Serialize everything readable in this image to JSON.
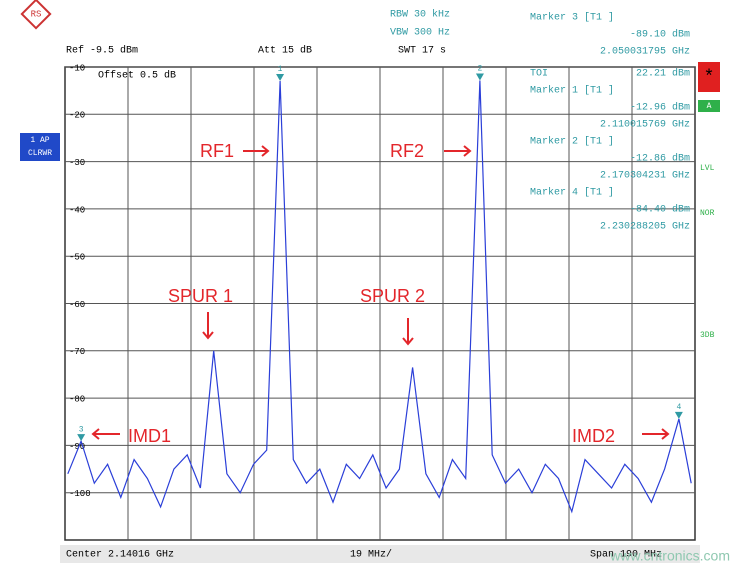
{
  "header": {
    "rbw": "RBW 30 kHz",
    "vbw": "VBW 300 Hz",
    "swt": "SWT 17 s",
    "ref": "Ref -9.5 dBm",
    "att": "Att 15 dB",
    "offset": "Offset 0.5 dB"
  },
  "marker_panel": {
    "rows": [
      {
        "label": "Marker 3 [T1 ]",
        "value": "-89.10 dBm",
        "freq": "2.050031795 GHz"
      },
      {
        "label": "TOI",
        "value": "22.21 dBm"
      },
      {
        "label": "Marker 1 [T1 ]",
        "value": "-12.96 dBm",
        "freq": "2.110015769 GHz"
      },
      {
        "label": "Marker 2 [T1 ]",
        "value": "-12.86 dBm",
        "freq": "2.170304231 GHz"
      },
      {
        "label": "Marker 4 [T1 ]",
        "value": "-84.40 dBm",
        "freq": "2.230288205 GHz"
      }
    ]
  },
  "side_labels": {
    "trace": "1 AP",
    "mode": "CLRWR",
    "star": "*",
    "a": "A",
    "lvl": "LVL",
    "nor": "NOR",
    "db": "3DB"
  },
  "footer": {
    "center": "Center 2.14016 GHz",
    "div": "19 MHz/",
    "span": "Span 190 MHz"
  },
  "watermark": "www.cntronics.com",
  "chart_data": {
    "type": "line",
    "color": "#2b3fd8",
    "grid": true,
    "xlim": [
      2045.16,
      2235.16
    ],
    "ylim": [
      -110,
      -10
    ],
    "yticks": [
      -10,
      -20,
      -30,
      -40,
      -50,
      -60,
      -70,
      -80,
      -90,
      -100
    ],
    "x": [
      2046,
      2050.03,
      2054,
      2058,
      2062,
      2066,
      2070,
      2074,
      2078,
      2082,
      2086,
      2090,
      2094,
      2098,
      2102,
      2106,
      2110.02,
      2114,
      2118,
      2122,
      2126,
      2130,
      2134,
      2138,
      2142,
      2146,
      2150,
      2154,
      2158,
      2162,
      2166,
      2170.3,
      2174,
      2178,
      2182,
      2186,
      2190,
      2194,
      2198,
      2202,
      2206,
      2210,
      2214,
      2218,
      2222,
      2226,
      2230.29,
      2234
    ],
    "values": [
      -96,
      -89.1,
      -98,
      -94,
      -101,
      -93,
      -97,
      -103,
      -95,
      -92,
      -99,
      -70,
      -96,
      -100,
      -94,
      -91,
      -12.96,
      -93,
      -98,
      -95,
      -102,
      -94,
      -97,
      -92,
      -99,
      -95,
      -73.5,
      -96,
      -101,
      -93,
      -97,
      -12.86,
      -92,
      -98,
      -95,
      -100,
      -94,
      -97,
      -104,
      -93,
      -96,
      -99,
      -94,
      -97,
      -102,
      -95,
      -84.4,
      -98
    ],
    "marker_labels": [
      "3",
      "1",
      "2",
      "4"
    ],
    "annotations": [
      "RF1",
      "RF2",
      "SPUR 1",
      "SPUR 2",
      "IMD1",
      "IMD2"
    ]
  }
}
